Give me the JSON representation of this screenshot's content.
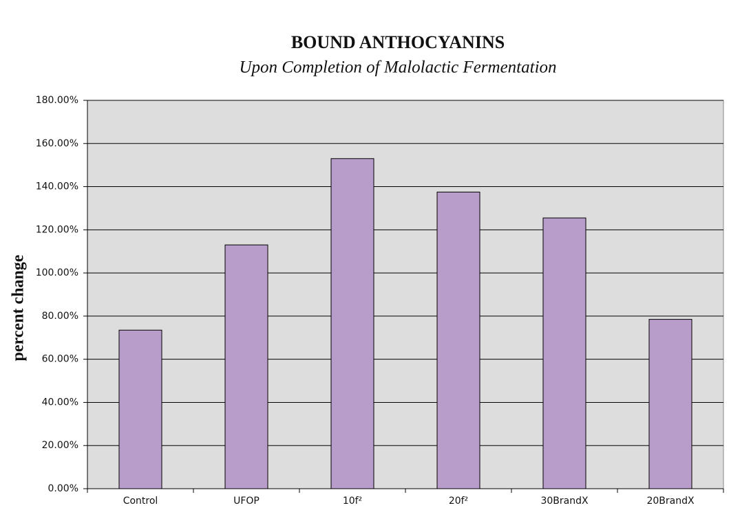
{
  "chart_data": {
    "type": "bar",
    "title": "BOUND ANTHOCYANINS",
    "subtitle": "Upon Completion of Malolactic Fermentation",
    "y_label": "percent change",
    "categories": [
      "Control",
      "UFOP",
      "10f²",
      "20f²",
      "30BrandX",
      "20BrandX"
    ],
    "values": [
      73.5,
      113,
      153,
      137.5,
      125.5,
      78.5
    ],
    "color": "#b89cca",
    "ylim": [
      0,
      180
    ],
    "yticks": [
      {
        "value": 0,
        "label": "0.00%"
      },
      {
        "value": 20,
        "label": "20.00%"
      },
      {
        "value": 40,
        "label": "40.00%"
      },
      {
        "value": 60,
        "label": "60.00%"
      },
      {
        "value": 80,
        "label": "80.00%"
      },
      {
        "value": 100,
        "label": "100.00%"
      },
      {
        "value": 120,
        "label": "120.00%"
      },
      {
        "value": 140,
        "label": "140.00%"
      },
      {
        "value": 160,
        "label": "160.00%"
      },
      {
        "value": 180,
        "label": "180.00%"
      }
    ],
    "grid": true
  }
}
